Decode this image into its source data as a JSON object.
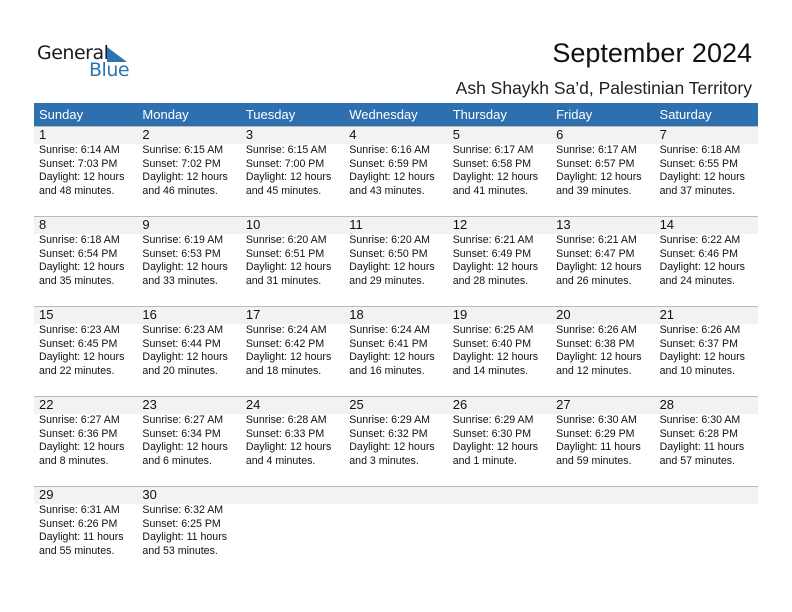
{
  "logo": {
    "line1": "General",
    "line2": "Blue",
    "accent": "#2e74b5"
  },
  "title": "September 2024",
  "subtitle": "Ash Shaykh Sa’d, Palestinian Territory",
  "header_color": "#2e6fb0",
  "weekdays": [
    "Sunday",
    "Monday",
    "Tuesday",
    "Wednesday",
    "Thursday",
    "Friday",
    "Saturday"
  ],
  "weeks": [
    [
      {
        "day": "1",
        "sunrise": "Sunrise: 6:14 AM",
        "sunset": "Sunset: 7:03 PM",
        "daylight1": "Daylight: 12 hours",
        "daylight2": "and 48 minutes."
      },
      {
        "day": "2",
        "sunrise": "Sunrise: 6:15 AM",
        "sunset": "Sunset: 7:02 PM",
        "daylight1": "Daylight: 12 hours",
        "daylight2": "and 46 minutes."
      },
      {
        "day": "3",
        "sunrise": "Sunrise: 6:15 AM",
        "sunset": "Sunset: 7:00 PM",
        "daylight1": "Daylight: 12 hours",
        "daylight2": "and 45 minutes."
      },
      {
        "day": "4",
        "sunrise": "Sunrise: 6:16 AM",
        "sunset": "Sunset: 6:59 PM",
        "daylight1": "Daylight: 12 hours",
        "daylight2": "and 43 minutes."
      },
      {
        "day": "5",
        "sunrise": "Sunrise: 6:17 AM",
        "sunset": "Sunset: 6:58 PM",
        "daylight1": "Daylight: 12 hours",
        "daylight2": "and 41 minutes."
      },
      {
        "day": "6",
        "sunrise": "Sunrise: 6:17 AM",
        "sunset": "Sunset: 6:57 PM",
        "daylight1": "Daylight: 12 hours",
        "daylight2": "and 39 minutes."
      },
      {
        "day": "7",
        "sunrise": "Sunrise: 6:18 AM",
        "sunset": "Sunset: 6:55 PM",
        "daylight1": "Daylight: 12 hours",
        "daylight2": "and 37 minutes."
      }
    ],
    [
      {
        "day": "8",
        "sunrise": "Sunrise: 6:18 AM",
        "sunset": "Sunset: 6:54 PM",
        "daylight1": "Daylight: 12 hours",
        "daylight2": "and 35 minutes."
      },
      {
        "day": "9",
        "sunrise": "Sunrise: 6:19 AM",
        "sunset": "Sunset: 6:53 PM",
        "daylight1": "Daylight: 12 hours",
        "daylight2": "and 33 minutes."
      },
      {
        "day": "10",
        "sunrise": "Sunrise: 6:20 AM",
        "sunset": "Sunset: 6:51 PM",
        "daylight1": "Daylight: 12 hours",
        "daylight2": "and 31 minutes."
      },
      {
        "day": "11",
        "sunrise": "Sunrise: 6:20 AM",
        "sunset": "Sunset: 6:50 PM",
        "daylight1": "Daylight: 12 hours",
        "daylight2": "and 29 minutes."
      },
      {
        "day": "12",
        "sunrise": "Sunrise: 6:21 AM",
        "sunset": "Sunset: 6:49 PM",
        "daylight1": "Daylight: 12 hours",
        "daylight2": "and 28 minutes."
      },
      {
        "day": "13",
        "sunrise": "Sunrise: 6:21 AM",
        "sunset": "Sunset: 6:47 PM",
        "daylight1": "Daylight: 12 hours",
        "daylight2": "and 26 minutes."
      },
      {
        "day": "14",
        "sunrise": "Sunrise: 6:22 AM",
        "sunset": "Sunset: 6:46 PM",
        "daylight1": "Daylight: 12 hours",
        "daylight2": "and 24 minutes."
      }
    ],
    [
      {
        "day": "15",
        "sunrise": "Sunrise: 6:23 AM",
        "sunset": "Sunset: 6:45 PM",
        "daylight1": "Daylight: 12 hours",
        "daylight2": "and 22 minutes."
      },
      {
        "day": "16",
        "sunrise": "Sunrise: 6:23 AM",
        "sunset": "Sunset: 6:44 PM",
        "daylight1": "Daylight: 12 hours",
        "daylight2": "and 20 minutes."
      },
      {
        "day": "17",
        "sunrise": "Sunrise: 6:24 AM",
        "sunset": "Sunset: 6:42 PM",
        "daylight1": "Daylight: 12 hours",
        "daylight2": "and 18 minutes."
      },
      {
        "day": "18",
        "sunrise": "Sunrise: 6:24 AM",
        "sunset": "Sunset: 6:41 PM",
        "daylight1": "Daylight: 12 hours",
        "daylight2": "and 16 minutes."
      },
      {
        "day": "19",
        "sunrise": "Sunrise: 6:25 AM",
        "sunset": "Sunset: 6:40 PM",
        "daylight1": "Daylight: 12 hours",
        "daylight2": "and 14 minutes."
      },
      {
        "day": "20",
        "sunrise": "Sunrise: 6:26 AM",
        "sunset": "Sunset: 6:38 PM",
        "daylight1": "Daylight: 12 hours",
        "daylight2": "and 12 minutes."
      },
      {
        "day": "21",
        "sunrise": "Sunrise: 6:26 AM",
        "sunset": "Sunset: 6:37 PM",
        "daylight1": "Daylight: 12 hours",
        "daylight2": "and 10 minutes."
      }
    ],
    [
      {
        "day": "22",
        "sunrise": "Sunrise: 6:27 AM",
        "sunset": "Sunset: 6:36 PM",
        "daylight1": "Daylight: 12 hours",
        "daylight2": "and 8 minutes."
      },
      {
        "day": "23",
        "sunrise": "Sunrise: 6:27 AM",
        "sunset": "Sunset: 6:34 PM",
        "daylight1": "Daylight: 12 hours",
        "daylight2": "and 6 minutes."
      },
      {
        "day": "24",
        "sunrise": "Sunrise: 6:28 AM",
        "sunset": "Sunset: 6:33 PM",
        "daylight1": "Daylight: 12 hours",
        "daylight2": "and 4 minutes."
      },
      {
        "day": "25",
        "sunrise": "Sunrise: 6:29 AM",
        "sunset": "Sunset: 6:32 PM",
        "daylight1": "Daylight: 12 hours",
        "daylight2": "and 3 minutes."
      },
      {
        "day": "26",
        "sunrise": "Sunrise: 6:29 AM",
        "sunset": "Sunset: 6:30 PM",
        "daylight1": "Daylight: 12 hours",
        "daylight2": "and 1 minute."
      },
      {
        "day": "27",
        "sunrise": "Sunrise: 6:30 AM",
        "sunset": "Sunset: 6:29 PM",
        "daylight1": "Daylight: 11 hours",
        "daylight2": "and 59 minutes."
      },
      {
        "day": "28",
        "sunrise": "Sunrise: 6:30 AM",
        "sunset": "Sunset: 6:28 PM",
        "daylight1": "Daylight: 11 hours",
        "daylight2": "and 57 minutes."
      }
    ],
    [
      {
        "day": "29",
        "sunrise": "Sunrise: 6:31 AM",
        "sunset": "Sunset: 6:26 PM",
        "daylight1": "Daylight: 11 hours",
        "daylight2": "and 55 minutes."
      },
      {
        "day": "30",
        "sunrise": "Sunrise: 6:32 AM",
        "sunset": "Sunset: 6:25 PM",
        "daylight1": "Daylight: 11 hours",
        "daylight2": "and 53 minutes."
      },
      null,
      null,
      null,
      null,
      null
    ]
  ]
}
